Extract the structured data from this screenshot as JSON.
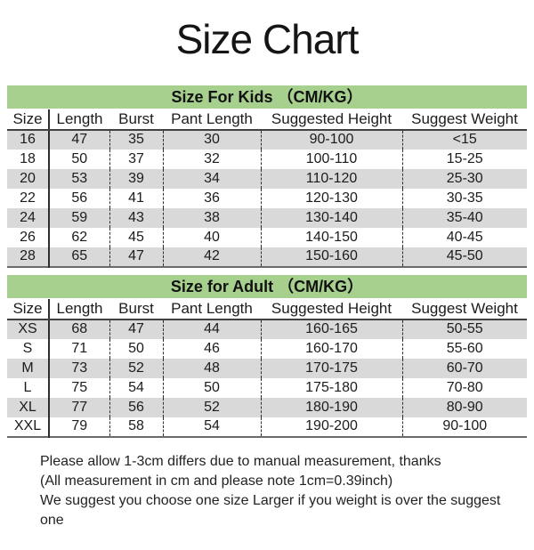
{
  "page": {
    "title": "Size Chart"
  },
  "colors": {
    "header_green": "#a7d08e",
    "stripe_gray": "#d9d9d9",
    "ink": "#1c1c1c"
  },
  "tables": [
    {
      "id": "kids",
      "title": "Size For Kids （CM/KG）",
      "columns": [
        "Size",
        "Length",
        "Burst",
        "Pant Length",
        "Suggested Height",
        "Suggest Weight"
      ],
      "rows": [
        [
          "16",
          "47",
          "35",
          "30",
          "90-100",
          "<15"
        ],
        [
          "18",
          "50",
          "37",
          "32",
          "100-110",
          "15-25"
        ],
        [
          "20",
          "53",
          "39",
          "34",
          "110-120",
          "25-30"
        ],
        [
          "22",
          "56",
          "41",
          "36",
          "120-130",
          "30-35"
        ],
        [
          "24",
          "59",
          "43",
          "38",
          "130-140",
          "35-40"
        ],
        [
          "26",
          "62",
          "45",
          "40",
          "140-150",
          "40-45"
        ],
        [
          "28",
          "65",
          "47",
          "42",
          "150-160",
          "45-50"
        ]
      ]
    },
    {
      "id": "adult",
      "title": "Size for Adult （CM/KG）",
      "columns": [
        "Size",
        "Length",
        "Burst",
        "Pant Length",
        "Suggested Height",
        "Suggest Weight"
      ],
      "rows": [
        [
          "XS",
          "68",
          "47",
          "44",
          "160-165",
          "50-55"
        ],
        [
          "S",
          "71",
          "50",
          "46",
          "160-170",
          "55-60"
        ],
        [
          "M",
          "73",
          "52",
          "48",
          "170-175",
          "60-70"
        ],
        [
          "L",
          "75",
          "54",
          "50",
          "175-180",
          "70-80"
        ],
        [
          "XL",
          "77",
          "56",
          "52",
          "180-190",
          "80-90"
        ],
        [
          "XXL",
          "79",
          "58",
          "54",
          "190-200",
          "90-100"
        ]
      ]
    }
  ],
  "footer": {
    "lines": [
      "Please allow 1-3cm differs due to manual measurement, thanks",
      "(All measurement in cm and please note 1cm=0.39inch)",
      "We suggest you choose one size Larger if you weight is over the suggest one"
    ]
  }
}
